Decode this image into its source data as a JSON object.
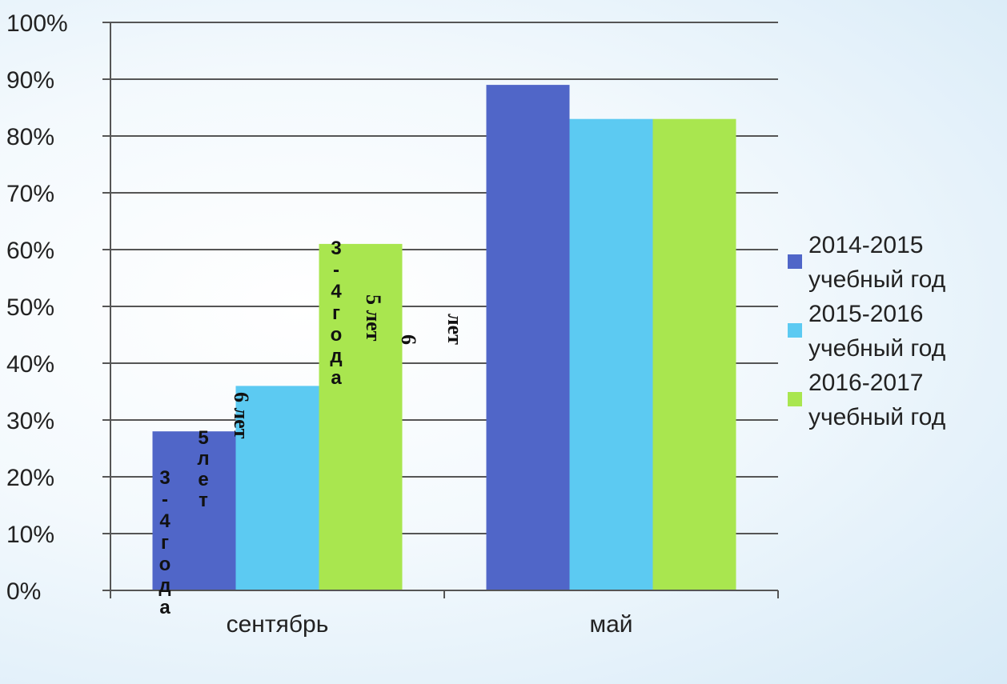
{
  "chart_data": {
    "type": "bar",
    "categories": [
      "сентябрь",
      "май"
    ],
    "series": [
      {
        "name": "2014-2015 учебный год",
        "values": [
          28,
          89
        ],
        "color": "#5066c8"
      },
      {
        "name": "2015-2016 учебный год",
        "values": [
          36,
          83
        ],
        "color": "#5ccaf2"
      },
      {
        "name": "2016-2017 учебный год",
        "values": [
          61,
          83
        ],
        "color": "#a9e64f"
      }
    ],
    "yticks": [
      "0%",
      "10%",
      "20%",
      "30%",
      "40%",
      "50%",
      "60%",
      "70%",
      "80%",
      "90%",
      "100%"
    ],
    "ylim": [
      0,
      100
    ],
    "grid": true,
    "legend_position": "right",
    "annotations": [
      "3-4 года",
      "5 лет",
      "6 лет",
      "3-4 года",
      "5 лет",
      "6",
      "лет"
    ]
  }
}
